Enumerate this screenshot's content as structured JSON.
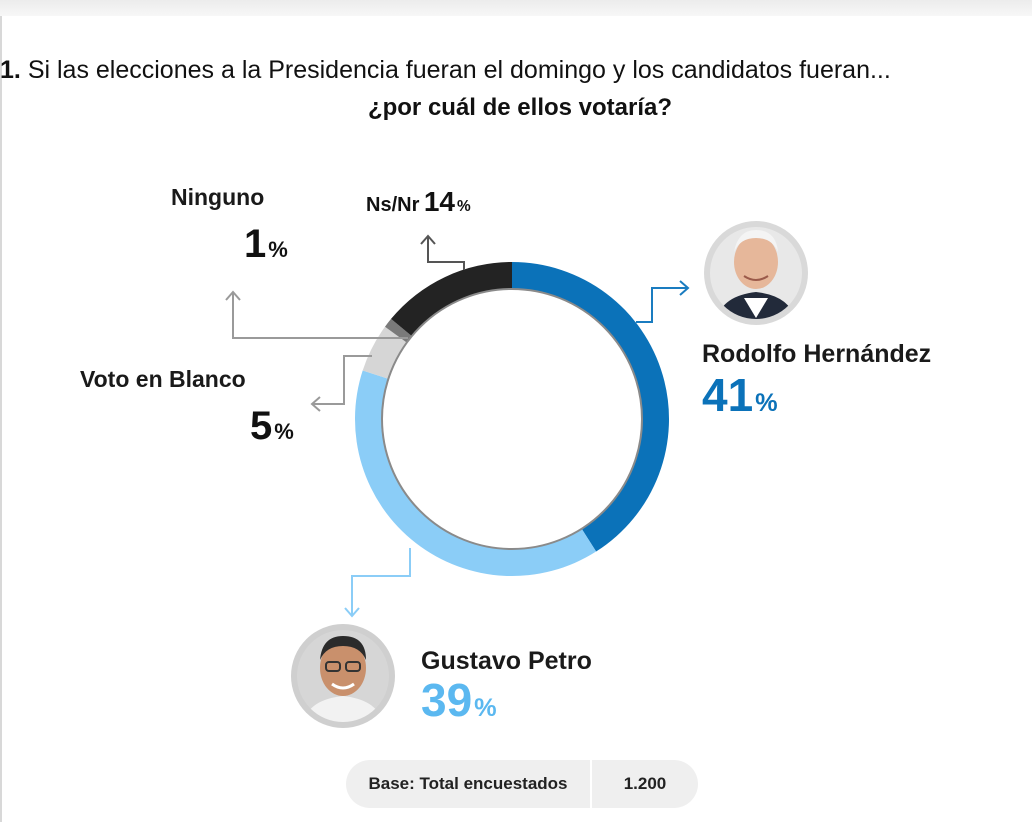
{
  "question": {
    "number": "1.",
    "text": "Si las elecciones a la Presidencia fueran el domingo y los candidatos fueran...",
    "subtext": "¿por cuál de ellos votaría?"
  },
  "chart_data": {
    "type": "pie",
    "style": "donut",
    "categories": [
      "Rodolfo Hernández",
      "Gustavo Petro",
      "Voto en Blanco",
      "Ninguno",
      "Ns/Nr"
    ],
    "values": [
      41,
      39,
      5,
      1,
      14
    ],
    "unit": "%",
    "colors": [
      "#0b72b9",
      "#8bcdf7",
      "#d6d6d6",
      "#7a7a7a",
      "#232323"
    ]
  },
  "labels": {
    "hernandez": {
      "name": "Rodolfo Hernández",
      "value": "41",
      "unit": "%"
    },
    "petro": {
      "name": "Gustavo Petro",
      "value": "39",
      "unit": "%"
    },
    "blanco": {
      "name": "Voto en Blanco",
      "value": "5",
      "unit": "%"
    },
    "ninguno": {
      "name": "Ninguno",
      "value": "1",
      "unit": "%"
    },
    "nsnr": {
      "name": "Ns/Nr",
      "value": "14",
      "unit": "%"
    }
  },
  "colors": {
    "hernandez": "#0b72b9",
    "petro": "#5bb8f0",
    "connector_blue": "#1a7cc0",
    "connector_light": "#8bcdf7",
    "connector_gray": "#9a9a9a"
  },
  "footer": {
    "label": "Base: Total encuestados",
    "value": "1.200"
  }
}
